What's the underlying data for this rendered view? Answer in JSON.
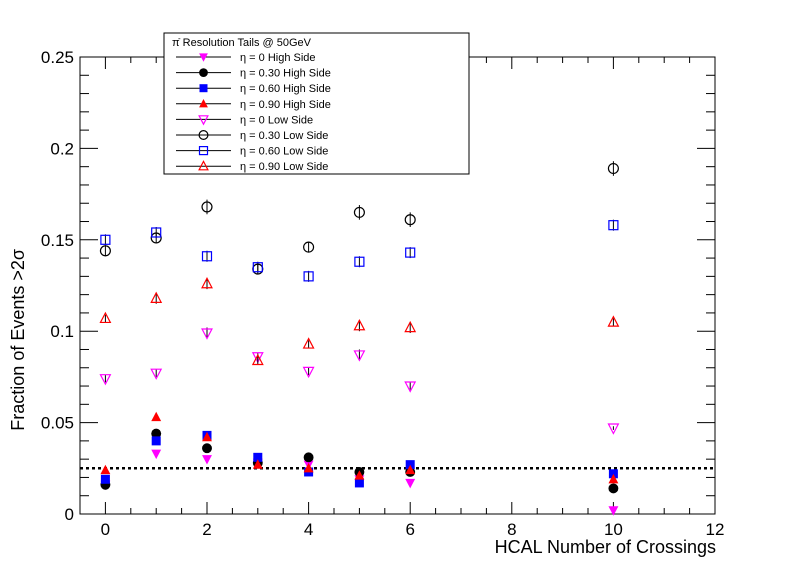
{
  "chart_data": {
    "type": "scatter",
    "xlabel": "HCAL Number of Crossings",
    "ylabel": "Fraction of Events >2σ",
    "xlim": [
      -0.5,
      12
    ],
    "ylim": [
      0,
      0.25
    ],
    "x_ticks": [
      0,
      2,
      4,
      6,
      8,
      10,
      12
    ],
    "x_tick_labels": [
      "0",
      "2",
      "4",
      "6",
      "8",
      "10",
      "12"
    ],
    "y_ticks": [
      0,
      0.05,
      0.1,
      0.15,
      0.2,
      0.25
    ],
    "y_tick_labels": [
      "0",
      "0.05",
      "0.1",
      "0.15",
      "0.2",
      "0.25"
    ],
    "grid": false,
    "legend": {
      "title": "π  Resolution Tails @ 50GeV",
      "title_superscript": "-",
      "placement": "top-left"
    },
    "reference_line": {
      "y": 0.025,
      "style": "dotted"
    },
    "series": [
      {
        "name": "η = 0 High Side",
        "marker": "triangle-down-filled",
        "color": "#ff00ff",
        "x": [
          0,
          1,
          2,
          3,
          4,
          5,
          6,
          10
        ],
        "y": [
          0.016,
          0.033,
          0.03,
          0.028,
          0.027,
          0.019,
          0.017,
          0.002
        ],
        "err": [
          0.001,
          0.001,
          0.001,
          0.001,
          0.001,
          0.001,
          0.001,
          0.001
        ]
      },
      {
        "name": "η = 0.30 High Side",
        "marker": "circle-filled",
        "color": "#000000",
        "x": [
          0,
          1,
          2,
          3,
          4,
          5,
          6,
          10
        ],
        "y": [
          0.016,
          0.044,
          0.036,
          0.028,
          0.031,
          0.023,
          0.023,
          0.014
        ],
        "err": [
          0.001,
          0.001,
          0.001,
          0.001,
          0.001,
          0.001,
          0.001,
          0.001
        ]
      },
      {
        "name": "η = 0.60 High Side",
        "marker": "square-filled",
        "color": "#0000ff",
        "x": [
          0,
          1,
          2,
          3,
          4,
          5,
          6,
          10
        ],
        "y": [
          0.019,
          0.04,
          0.043,
          0.031,
          0.023,
          0.017,
          0.027,
          0.022
        ],
        "err": [
          0.001,
          0.001,
          0.001,
          0.001,
          0.001,
          0.001,
          0.001,
          0.001
        ]
      },
      {
        "name": "η = 0.90 High Side",
        "marker": "triangle-up-filled",
        "color": "#ff0000",
        "x": [
          0,
          1,
          2,
          3,
          4,
          5,
          6,
          10
        ],
        "y": [
          0.024,
          0.053,
          0.042,
          0.027,
          0.025,
          0.021,
          0.024,
          0.019
        ],
        "err": [
          0.001,
          0.001,
          0.001,
          0.001,
          0.001,
          0.001,
          0.001,
          0.001
        ]
      },
      {
        "name": "η = 0 Low Side",
        "marker": "triangle-down-open",
        "color": "#ff00ff",
        "x": [
          0,
          1,
          2,
          3,
          4,
          5,
          6,
          10
        ],
        "y": [
          0.074,
          0.077,
          0.099,
          0.086,
          0.078,
          0.087,
          0.07,
          0.047
        ],
        "err": [
          0.002,
          0.002,
          0.003,
          0.002,
          0.002,
          0.003,
          0.002,
          0.001
        ]
      },
      {
        "name": "η = 0.30 Low Side",
        "marker": "circle-open",
        "color": "#000000",
        "x": [
          0,
          1,
          2,
          3,
          4,
          5,
          6,
          10
        ],
        "y": [
          0.144,
          0.151,
          0.168,
          0.134,
          0.146,
          0.165,
          0.161,
          0.189
        ],
        "err": [
          0.003,
          0.003,
          0.004,
          0.003,
          0.003,
          0.004,
          0.004,
          0.004
        ]
      },
      {
        "name": "η = 0.60 Low Side",
        "marker": "square-open",
        "color": "#0000ff",
        "x": [
          0,
          1,
          2,
          3,
          4,
          5,
          6,
          10
        ],
        "y": [
          0.15,
          0.154,
          0.141,
          0.135,
          0.13,
          0.138,
          0.143,
          0.158
        ],
        "err": [
          0.003,
          0.003,
          0.003,
          0.003,
          0.003,
          0.003,
          0.003,
          0.003
        ]
      },
      {
        "name": "η = 0.90 Low Side",
        "marker": "triangle-up-open",
        "color": "#ff0000",
        "x": [
          0,
          1,
          2,
          3,
          4,
          5,
          6,
          10
        ],
        "y": [
          0.107,
          0.118,
          0.126,
          0.084,
          0.093,
          0.103,
          0.102,
          0.105
        ],
        "err": [
          0.002,
          0.003,
          0.003,
          0.002,
          0.002,
          0.003,
          0.003,
          0.002
        ]
      }
    ]
  }
}
